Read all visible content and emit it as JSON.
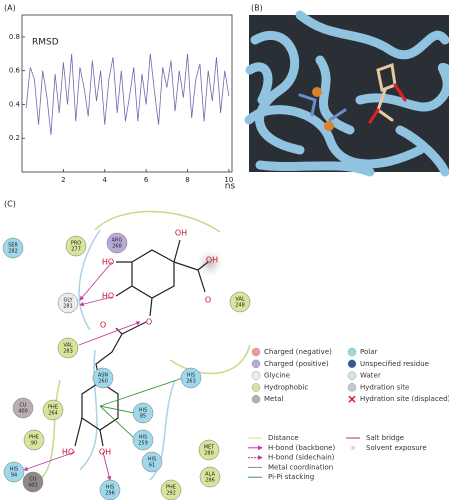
{
  "chart_data": {
    "type": "line",
    "panel": "(A)",
    "title": "RMSD",
    "x_unit": "ns",
    "x": [
      0.2,
      0.4,
      0.6,
      0.8,
      1.0,
      1.2,
      1.4,
      1.6,
      1.8,
      2.0,
      2.2,
      2.4,
      2.6,
      2.8,
      3.0,
      3.2,
      3.4,
      3.6,
      3.8,
      4.0,
      4.2,
      4.4,
      4.6,
      4.8,
      5.0,
      5.2,
      5.4,
      5.6,
      5.8,
      6.0,
      6.2,
      6.4,
      6.6,
      6.8,
      7.0,
      7.2,
      7.4,
      7.6,
      7.8,
      8.0,
      8.2,
      8.4,
      8.6,
      8.8,
      9.0,
      9.2,
      9.4,
      9.6,
      9.8,
      10.0
    ],
    "values": [
      0.38,
      0.62,
      0.55,
      0.28,
      0.6,
      0.45,
      0.22,
      0.58,
      0.35,
      0.65,
      0.4,
      0.7,
      0.3,
      0.62,
      0.5,
      0.33,
      0.66,
      0.42,
      0.6,
      0.28,
      0.55,
      0.68,
      0.35,
      0.6,
      0.3,
      0.45,
      0.62,
      0.3,
      0.58,
      0.4,
      0.7,
      0.48,
      0.28,
      0.62,
      0.5,
      0.66,
      0.36,
      0.6,
      0.44,
      0.7,
      0.32,
      0.55,
      0.64,
      0.3,
      0.6,
      0.42,
      0.68,
      0.35,
      0.6,
      0.45
    ],
    "color": "#6b6bb0",
    "xlim": [
      0,
      10.15
    ],
    "ylim": [
      0,
      0.93
    ],
    "xticks": [
      2,
      4,
      6,
      8,
      10
    ],
    "yticks": [
      0.2,
      0.4,
      0.6,
      0.8
    ]
  },
  "panel_b": {
    "label": "(B)"
  },
  "panel_c": {
    "label": "(C)",
    "residues": [
      {
        "name": "ARG",
        "number": "268",
        "color": "#b9a8d8"
      },
      {
        "name": "SER",
        "number": "282",
        "color": "#9fd8ea"
      },
      {
        "name": "PRO",
        "number": "277",
        "color": "#d6e59a"
      },
      {
        "name": "GLY",
        "number": "281",
        "color": "#ececec"
      },
      {
        "name": "VAL",
        "number": "283",
        "color": "#d6e59a"
      },
      {
        "name": "VAL",
        "number": "248",
        "color": "#d6e59a"
      },
      {
        "name": "ASN",
        "number": "260",
        "color": "#9fd8ea"
      },
      {
        "name": "HIS",
        "number": "263",
        "color": "#9fd8ea"
      },
      {
        "name": "CU",
        "number": "400",
        "color": "#b8b0b0"
      },
      {
        "name": "PHE",
        "number": "264",
        "color": "#d6e59a"
      },
      {
        "name": "HIS",
        "number": "85",
        "color": "#9fd8ea"
      },
      {
        "name": "HIS",
        "number": "259",
        "color": "#9fd8ea"
      },
      {
        "name": "PHE",
        "number": "90",
        "color": "#d6e59a"
      },
      {
        "name": "MET",
        "number": "280",
        "color": "#d6e59a"
      },
      {
        "name": "HIS",
        "number": "94",
        "color": "#9fd8ea"
      },
      {
        "name": "CU",
        "number": "401",
        "color": "#8f8888"
      },
      {
        "name": "HIS",
        "number": "61",
        "color": "#9fd8ea"
      },
      {
        "name": "ALA",
        "number": "286",
        "color": "#d6e59a"
      },
      {
        "name": "HIS",
        "number": "296",
        "color": "#9fd8ea"
      },
      {
        "name": "PHE",
        "number": "292",
        "color": "#d6e59a"
      }
    ],
    "atoms": [
      "OH",
      "OH",
      "HO",
      "O",
      "HO",
      "O",
      "O",
      "HO",
      "OH"
    ],
    "legend": {
      "residue_types": [
        "Charged (negative)",
        "Charged (positive)",
        "Glycine",
        "Hydrophobic",
        "Metal"
      ],
      "residue_types_2": [
        "Polar",
        "Unspecified residue",
        "Water",
        "Hydration site",
        "Hydration site (displaced)"
      ],
      "interactions": [
        "Distance",
        "H-bond (backbone)",
        "H-bond (sidechain)",
        "Metal coordination",
        "Pi-Pi stacking"
      ],
      "interactions_2": [
        "Salt bridge",
        "Solvent exposure"
      ]
    }
  }
}
